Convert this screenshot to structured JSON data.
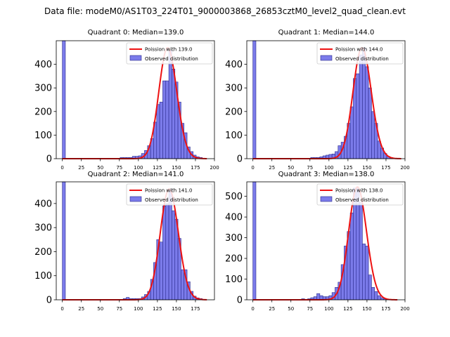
{
  "suptitle": "Data file: modeM0/AS1T03_224T01_9000003868_26853cztM0_level2_quad_clean.evt",
  "colors": {
    "bar_fill": "#7b7bea",
    "bar_edge": "#2a2a8c",
    "poisson_line": "#ee1111",
    "axis": "#000000"
  },
  "chart_data": [
    {
      "type": "bar",
      "title": "Quadrant 0: Median=139.0",
      "xlim": [
        -8,
        200
      ],
      "ylim": [
        0,
        500
      ],
      "xticks": [
        0,
        25,
        50,
        75,
        100,
        125,
        150,
        175,
        200
      ],
      "yticks": [
        0,
        100,
        200,
        300,
        400
      ],
      "legend_position": "top-right",
      "legend": [
        "Poission with 139.0",
        "Observed distribution"
      ],
      "bin_width": 4,
      "bins": [
        {
          "x": 0,
          "y": 500
        },
        {
          "x": 76,
          "y": 5
        },
        {
          "x": 80,
          "y": 5
        },
        {
          "x": 84,
          "y": 5
        },
        {
          "x": 88,
          "y": 5
        },
        {
          "x": 92,
          "y": 10
        },
        {
          "x": 96,
          "y": 10
        },
        {
          "x": 100,
          "y": 12
        },
        {
          "x": 104,
          "y": 22
        },
        {
          "x": 108,
          "y": 35
        },
        {
          "x": 112,
          "y": 55
        },
        {
          "x": 116,
          "y": 85
        },
        {
          "x": 120,
          "y": 155
        },
        {
          "x": 124,
          "y": 230
        },
        {
          "x": 128,
          "y": 240
        },
        {
          "x": 132,
          "y": 330
        },
        {
          "x": 136,
          "y": 330
        },
        {
          "x": 140,
          "y": 460
        },
        {
          "x": 144,
          "y": 380
        },
        {
          "x": 148,
          "y": 325
        },
        {
          "x": 152,
          "y": 240
        },
        {
          "x": 156,
          "y": 150
        },
        {
          "x": 160,
          "y": 110
        },
        {
          "x": 164,
          "y": 50
        },
        {
          "x": 168,
          "y": 30
        },
        {
          "x": 172,
          "y": 15
        },
        {
          "x": 176,
          "y": 8
        },
        {
          "x": 180,
          "y": 5
        }
      ],
      "poisson": {
        "mean": 139.0,
        "peak": 470,
        "range": [
          0,
          190
        ]
      }
    },
    {
      "type": "bar",
      "title": "Quadrant 1: Median=144.0",
      "xlim": [
        -8,
        200
      ],
      "ylim": [
        0,
        500
      ],
      "xticks": [
        0,
        25,
        50,
        75,
        100,
        125,
        150,
        175,
        200
      ],
      "yticks": [
        0,
        100,
        200,
        300,
        400
      ],
      "legend_position": "top-right",
      "legend": [
        "Poission with 144.0",
        "Observed distribution"
      ],
      "bin_width": 4,
      "bins": [
        {
          "x": 0,
          "y": 500
        },
        {
          "x": 76,
          "y": 5
        },
        {
          "x": 80,
          "y": 5
        },
        {
          "x": 84,
          "y": 5
        },
        {
          "x": 88,
          "y": 8
        },
        {
          "x": 92,
          "y": 12
        },
        {
          "x": 96,
          "y": 15
        },
        {
          "x": 100,
          "y": 18
        },
        {
          "x": 104,
          "y": 20
        },
        {
          "x": 108,
          "y": 30
        },
        {
          "x": 112,
          "y": 55
        },
        {
          "x": 116,
          "y": 70
        },
        {
          "x": 120,
          "y": 95
        },
        {
          "x": 124,
          "y": 150
        },
        {
          "x": 128,
          "y": 220
        },
        {
          "x": 132,
          "y": 340
        },
        {
          "x": 136,
          "y": 360
        },
        {
          "x": 140,
          "y": 440
        },
        {
          "x": 144,
          "y": 470
        },
        {
          "x": 148,
          "y": 390
        },
        {
          "x": 152,
          "y": 300
        },
        {
          "x": 156,
          "y": 200
        },
        {
          "x": 160,
          "y": 150
        },
        {
          "x": 164,
          "y": 75
        },
        {
          "x": 168,
          "y": 45
        },
        {
          "x": 172,
          "y": 22
        },
        {
          "x": 176,
          "y": 10
        },
        {
          "x": 180,
          "y": 5
        }
      ],
      "poisson": {
        "mean": 144.0,
        "peak": 470,
        "range": [
          0,
          195
        ]
      }
    },
    {
      "type": "bar",
      "title": "Quadrant 2: Median=141.0",
      "xlim": [
        -8,
        200
      ],
      "ylim": [
        0,
        490
      ],
      "xticks": [
        0,
        25,
        50,
        75,
        100,
        125,
        150,
        175
      ],
      "yticks": [
        0,
        100,
        200,
        300,
        400
      ],
      "legend_position": "top-right",
      "legend": [
        "Poission with 141.0",
        "Observed distribution"
      ],
      "bin_width": 4,
      "bins": [
        {
          "x": 0,
          "y": 490
        },
        {
          "x": 80,
          "y": 5
        },
        {
          "x": 84,
          "y": 10
        },
        {
          "x": 88,
          "y": 5
        },
        {
          "x": 92,
          "y": 5
        },
        {
          "x": 96,
          "y": 5
        },
        {
          "x": 100,
          "y": 5
        },
        {
          "x": 104,
          "y": 12
        },
        {
          "x": 108,
          "y": 22
        },
        {
          "x": 112,
          "y": 35
        },
        {
          "x": 116,
          "y": 85
        },
        {
          "x": 120,
          "y": 155
        },
        {
          "x": 124,
          "y": 250
        },
        {
          "x": 128,
          "y": 240
        },
        {
          "x": 132,
          "y": 390
        },
        {
          "x": 136,
          "y": 400
        },
        {
          "x": 140,
          "y": 460
        },
        {
          "x": 144,
          "y": 370
        },
        {
          "x": 148,
          "y": 335
        },
        {
          "x": 152,
          "y": 255
        },
        {
          "x": 156,
          "y": 125
        },
        {
          "x": 160,
          "y": 125
        },
        {
          "x": 164,
          "y": 75
        },
        {
          "x": 168,
          "y": 35
        },
        {
          "x": 172,
          "y": 15
        },
        {
          "x": 176,
          "y": 8
        },
        {
          "x": 180,
          "y": 5
        }
      ],
      "poisson": {
        "mean": 141.0,
        "peak": 460,
        "range": [
          0,
          190
        ]
      }
    },
    {
      "type": "bar",
      "title": "Quadrant 3: Median=138.0",
      "xlim": [
        -8,
        200
      ],
      "ylim": [
        0,
        570
      ],
      "xticks": [
        0,
        25,
        50,
        75,
        100,
        125,
        150,
        175,
        200
      ],
      "yticks": [
        0,
        100,
        200,
        300,
        400,
        500
      ],
      "legend_position": "top-right",
      "legend": [
        "Poission with 138.0",
        "Observed distribution"
      ],
      "bin_width": 4,
      "bins": [
        {
          "x": 0,
          "y": 570
        },
        {
          "x": 64,
          "y": 5
        },
        {
          "x": 72,
          "y": 5
        },
        {
          "x": 76,
          "y": 10
        },
        {
          "x": 80,
          "y": 15
        },
        {
          "x": 84,
          "y": 30
        },
        {
          "x": 88,
          "y": 20
        },
        {
          "x": 92,
          "y": 15
        },
        {
          "x": 96,
          "y": 15
        },
        {
          "x": 100,
          "y": 20
        },
        {
          "x": 104,
          "y": 35
        },
        {
          "x": 108,
          "y": 60
        },
        {
          "x": 112,
          "y": 85
        },
        {
          "x": 116,
          "y": 170
        },
        {
          "x": 120,
          "y": 260
        },
        {
          "x": 124,
          "y": 330
        },
        {
          "x": 128,
          "y": 420
        },
        {
          "x": 132,
          "y": 540
        },
        {
          "x": 136,
          "y": 540
        },
        {
          "x": 140,
          "y": 470
        },
        {
          "x": 144,
          "y": 270
        },
        {
          "x": 148,
          "y": 260
        },
        {
          "x": 152,
          "y": 120
        },
        {
          "x": 156,
          "y": 60
        },
        {
          "x": 160,
          "y": 40
        },
        {
          "x": 164,
          "y": 20
        },
        {
          "x": 168,
          "y": 10
        },
        {
          "x": 172,
          "y": 5
        }
      ],
      "poisson": {
        "mean": 138.0,
        "peak": 545,
        "range": [
          0,
          190
        ]
      }
    }
  ]
}
